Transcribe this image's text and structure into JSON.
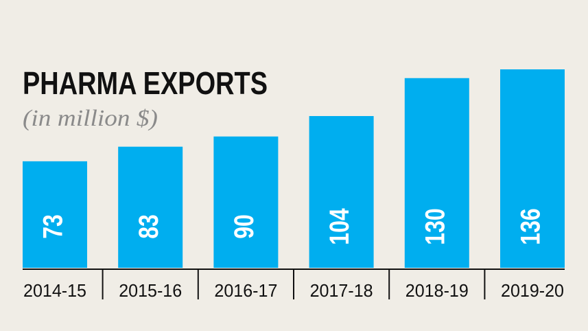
{
  "chart_data": {
    "type": "bar",
    "title": "PHARMA EXPORTS",
    "subtitle": "(in million $)",
    "categories": [
      "2014-15",
      "2015-16",
      "2016-17",
      "2017-18",
      "2018-19",
      "2019-20"
    ],
    "values": [
      73,
      83,
      90,
      104,
      130,
      136
    ],
    "color": "#00aeef"
  }
}
